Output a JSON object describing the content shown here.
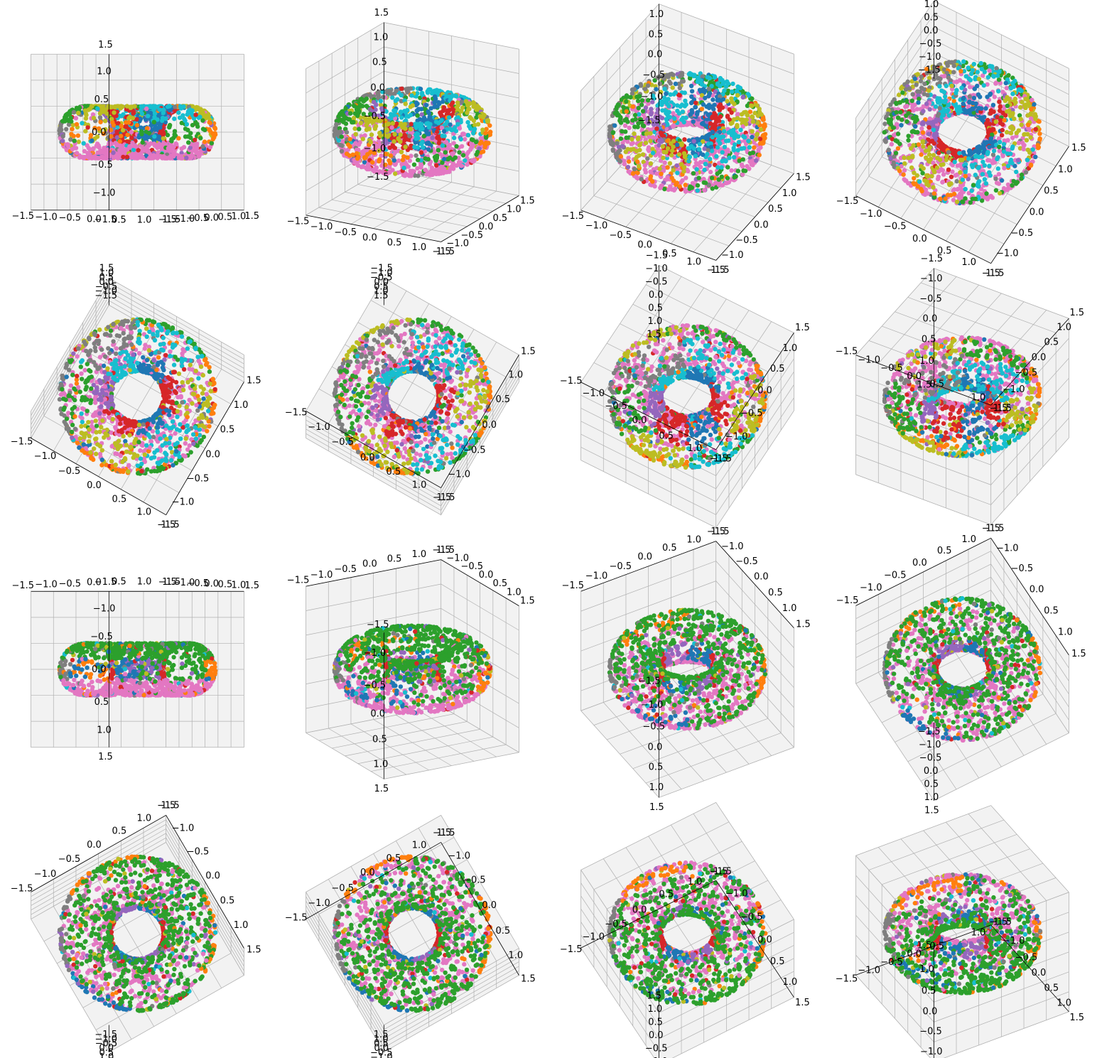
{
  "figure": {
    "grid": "4x4",
    "background": "#ffffff",
    "pane_color": "#f2f2f2",
    "grid_color": "#b0b0b0"
  },
  "chart_data": {
    "type": "scatter",
    "subtype": "3d-scatter-torus",
    "axes": {
      "x": {
        "lim": [
          -1.5,
          1.5
        ],
        "ticks": [
          "−1.5",
          "−1.0",
          "−0.5",
          "0.0",
          "0.5",
          "1.0",
          "1.5"
        ]
      },
      "y": {
        "lim": [
          -1.5,
          1.5
        ],
        "ticks": [
          "−1.5",
          "−1.0",
          "−0.5",
          "0.0",
          "0.5",
          "1.0",
          "1.5"
        ]
      },
      "z": {
        "lim": [
          -1.5,
          1.5
        ],
        "ticks": [
          "−1.5",
          "−1.0",
          "−0.5",
          "0.0",
          "0.5",
          "1.0",
          "1.5"
        ]
      }
    },
    "surface": {
      "shape": "torus",
      "major_radius": 1.0,
      "minor_radius": 0.5
    },
    "grid": true,
    "legend": "none",
    "series_colors": [
      "#1f77b4",
      "#ff7f0e",
      "#2ca02c",
      "#d62728",
      "#9467bd",
      "#e377c2",
      "#7f7f7f",
      "#bcbd22",
      "#17becf"
    ],
    "panels": [
      {
        "elev": 0,
        "azim": -60
      },
      {
        "elev": 20,
        "azim": -60
      },
      {
        "elev": 40,
        "azim": -60
      },
      {
        "elev": 60,
        "azim": -60
      },
      {
        "elev": 80,
        "azim": -60
      },
      {
        "elev": 100,
        "azim": -60
      },
      {
        "elev": 120,
        "azim": -60
      },
      {
        "elev": 140,
        "azim": -60
      },
      {
        "elev": 180,
        "azim": -60
      },
      {
        "elev": 200,
        "azim": -60
      },
      {
        "elev": 220,
        "azim": -60
      },
      {
        "elev": 240,
        "azim": -60
      },
      {
        "elev": 260,
        "azim": -60
      },
      {
        "elev": 280,
        "azim": -60
      },
      {
        "elev": 300,
        "azim": -60
      },
      {
        "elev": 320,
        "azim": -60
      }
    ]
  }
}
